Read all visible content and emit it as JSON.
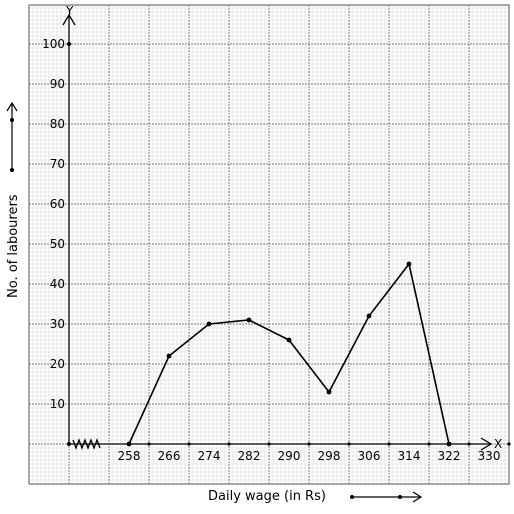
{
  "chart_data": {
    "type": "line",
    "xlabel": "Daily wage (in Rs)",
    "ylabel": "No. of labourers",
    "x_axis_letter": "X",
    "y_axis_letter": "Y",
    "x_ticks": [
      258,
      266,
      274,
      282,
      290,
      298,
      306,
      314,
      322,
      330
    ],
    "y_ticks": [
      10,
      20,
      30,
      40,
      50,
      60,
      70,
      80,
      90,
      100
    ],
    "xlim": [
      250,
      334
    ],
    "ylim": [
      0,
      100
    ],
    "origin_break": true,
    "grid": true,
    "series": [
      {
        "x": [
          262,
          270,
          278,
          286,
          294,
          302,
          310,
          318,
          326
        ],
        "y": [
          0,
          22,
          30,
          31,
          26,
          13,
          32,
          45,
          0
        ]
      }
    ]
  },
  "colors": {
    "grid_minor": "#d3d3d3",
    "grid_major": "#7a7a7a",
    "line": "#000000"
  }
}
